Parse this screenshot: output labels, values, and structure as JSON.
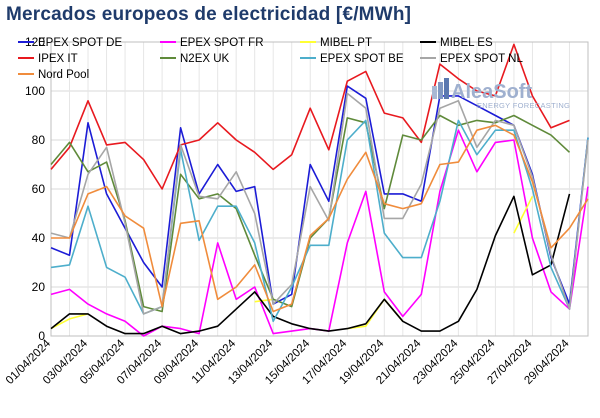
{
  "title": "Mercados europeos de electricidad [€/MWh]",
  "logo": {
    "name": "AleaSoft",
    "tagline": "ENERGY FORECASTING"
  },
  "chart_data": {
    "type": "line",
    "title": "Mercados europeos de electricidad [€/MWh]",
    "xlabel": "",
    "ylabel": "",
    "ylim": [
      0,
      120
    ],
    "yticks": [
      0,
      20,
      40,
      60,
      80,
      100,
      120
    ],
    "grid": true,
    "legend_position": "top",
    "x": [
      "01/04/2024",
      "02/04/2024",
      "03/04/2024",
      "04/04/2024",
      "05/04/2024",
      "06/04/2024",
      "07/04/2024",
      "08/04/2024",
      "09/04/2024",
      "10/04/2024",
      "11/04/2024",
      "12/04/2024",
      "13/04/2024",
      "14/04/2024",
      "15/04/2024",
      "16/04/2024",
      "17/04/2024",
      "18/04/2024",
      "19/04/2024",
      "20/04/2024",
      "21/04/2024",
      "22/04/2024",
      "23/04/2024",
      "24/04/2024",
      "25/04/2024",
      "26/04/2024",
      "27/04/2024",
      "28/04/2024",
      "29/04/2024",
      "30/04/2024"
    ],
    "x_tick_labels": [
      "01/04/2024",
      "03/04/2024",
      "05/04/2024",
      "07/04/2024",
      "09/04/2024",
      "11/04/2024",
      "13/04/2024",
      "15/04/2024",
      "17/04/2024",
      "19/04/2024",
      "21/04/2024",
      "23/04/2024",
      "25/04/2024",
      "27/04/2024",
      "29/04/2024"
    ],
    "series": [
      {
        "name": "EPEX SPOT DE",
        "color": "#1c1cd6",
        "values": [
          36,
          33,
          87,
          58,
          44,
          30,
          20,
          85,
          58,
          70,
          59,
          61,
          13,
          17,
          70,
          55,
          102,
          97,
          58,
          58,
          55,
          98,
          98,
          94,
          90,
          86,
          66,
          32,
          13,
          81
        ]
      },
      {
        "name": "EPEX SPOT FR",
        "color": "#ff00ff",
        "values": [
          17,
          19,
          13,
          9,
          6,
          0,
          4,
          3,
          1,
          38,
          15,
          20,
          1,
          2,
          3,
          2,
          38,
          59,
          18,
          8,
          17,
          59,
          84,
          67,
          79,
          80,
          40,
          18,
          11,
          61
        ]
      },
      {
        "name": "MIBEL PT",
        "color": "#ffff33",
        "values": [
          3,
          7,
          9,
          null,
          null,
          null,
          null,
          null,
          null,
          null,
          null,
          14,
          15,
          null,
          null,
          null,
          3,
          4,
          15,
          6,
          null,
          null,
          null,
          null,
          null,
          42,
          57,
          null,
          null,
          58
        ]
      },
      {
        "name": "MIBEL ES",
        "color": "#000000",
        "values": [
          3,
          9,
          9,
          4,
          1,
          1,
          4,
          1,
          2,
          4,
          11,
          18,
          8,
          5,
          3,
          2,
          3,
          5,
          15,
          6,
          2,
          2,
          6,
          19,
          41,
          57,
          25,
          29,
          58,
          null
        ]
      },
      {
        "name": "IPEX IT",
        "color": "#e8191f",
        "values": [
          68,
          77,
          96,
          78,
          79,
          72,
          60,
          78,
          80,
          87,
          80,
          75,
          68,
          74,
          93,
          76,
          104,
          108,
          91,
          89,
          79,
          111,
          105,
          100,
          98,
          119,
          98,
          85,
          88,
          null
        ]
      },
      {
        "name": "N2EX UK",
        "color": "#5f8a3a",
        "values": [
          70,
          79,
          67,
          71,
          47,
          12,
          10,
          66,
          56,
          58,
          52,
          33,
          15,
          12,
          40,
          48,
          89,
          87,
          52,
          82,
          80,
          90,
          86,
          88,
          87,
          90,
          86,
          82,
          75,
          null
        ]
      },
      {
        "name": "EPEX SPOT BE",
        "color": "#4daecb",
        "values": [
          28,
          29,
          53,
          28,
          24,
          9,
          12,
          76,
          39,
          53,
          53,
          38,
          6,
          20,
          37,
          37,
          80,
          88,
          42,
          32,
          32,
          55,
          88,
          74,
          84,
          84,
          60,
          28,
          11,
          81
        ]
      },
      {
        "name": "EPEX SPOT NL",
        "color": "#a6a6a6",
        "values": [
          42,
          40,
          66,
          77,
          46,
          9,
          12,
          78,
          57,
          56,
          67,
          50,
          13,
          21,
          61,
          47,
          99,
          93,
          48,
          48,
          62,
          93,
          96,
          77,
          88,
          86,
          65,
          33,
          11,
          80
        ]
      },
      {
        "name": "Nord Pool",
        "color": "#f08c3c",
        "values": [
          40,
          40,
          58,
          61,
          49,
          44,
          12,
          46,
          47,
          15,
          20,
          29,
          10,
          13,
          41,
          48,
          64,
          75,
          54,
          52,
          54,
          70,
          71,
          84,
          86,
          82,
          63,
          36,
          44,
          56
        ]
      }
    ]
  }
}
